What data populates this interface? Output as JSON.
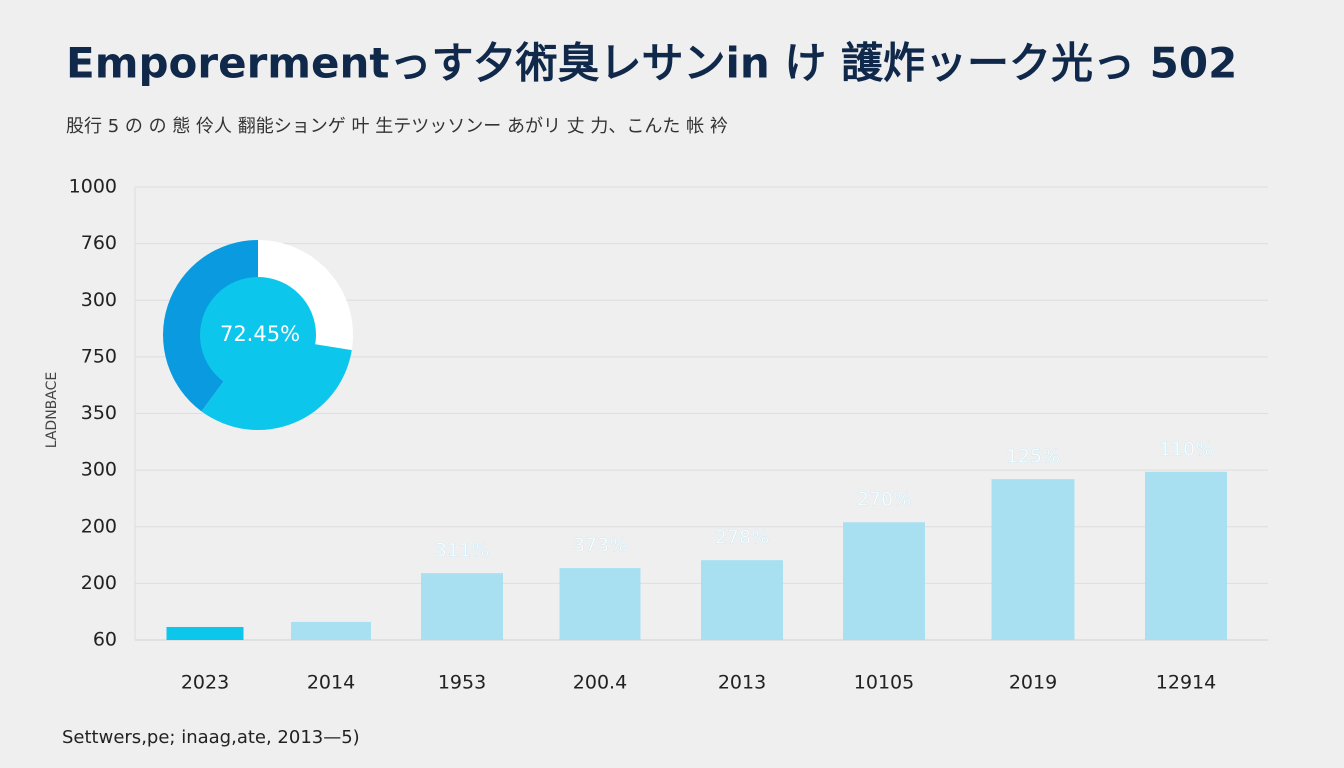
{
  "chart_data": {
    "type": "bar",
    "title": "Emporermentっす夕術臭レサンin け 護炸ッーク光っ 502",
    "subtitle": "股行 5 の の 態 伶人 翻能ションゲ 叶 生テツッソンー あがリ 丈 力、こんた 帐 衿",
    "y_axis_label": "LADNBACE",
    "footer": "Settwers,pe; inaag,ate, 2013—5)",
    "ytick_labels": [
      "60",
      "200",
      "200",
      "300",
      "350",
      "750",
      "300",
      "760",
      "1000"
    ],
    "ylim": [
      0,
      8
    ],
    "yticks": [
      0,
      1,
      2,
      3,
      4,
      5,
      6,
      7,
      8
    ],
    "grid": true,
    "categories": [
      "2023",
      "2014",
      "1953",
      "200.4",
      "2013",
      "10105",
      "2019",
      "12914"
    ],
    "values": [
      0.23,
      0.32,
      1.18,
      1.27,
      1.41,
      2.08,
      2.84,
      2.97
    ],
    "colors": [
      "#0cc6ec",
      "#a8e0f2",
      "#a8e0f2",
      "#a8e0f2",
      "#a8e0f2",
      "#a8e0f2",
      "#a8e0f2",
      "#a8e0f2"
    ],
    "annotations": [
      null,
      null,
      "311%",
      "373%",
      "278%",
      "270%",
      "125%",
      "110%"
    ],
    "donut": {
      "value": 72.45,
      "label": "72.45%",
      "colors": [
        "#0a9ae0",
        "#0cc6ec"
      ]
    }
  }
}
